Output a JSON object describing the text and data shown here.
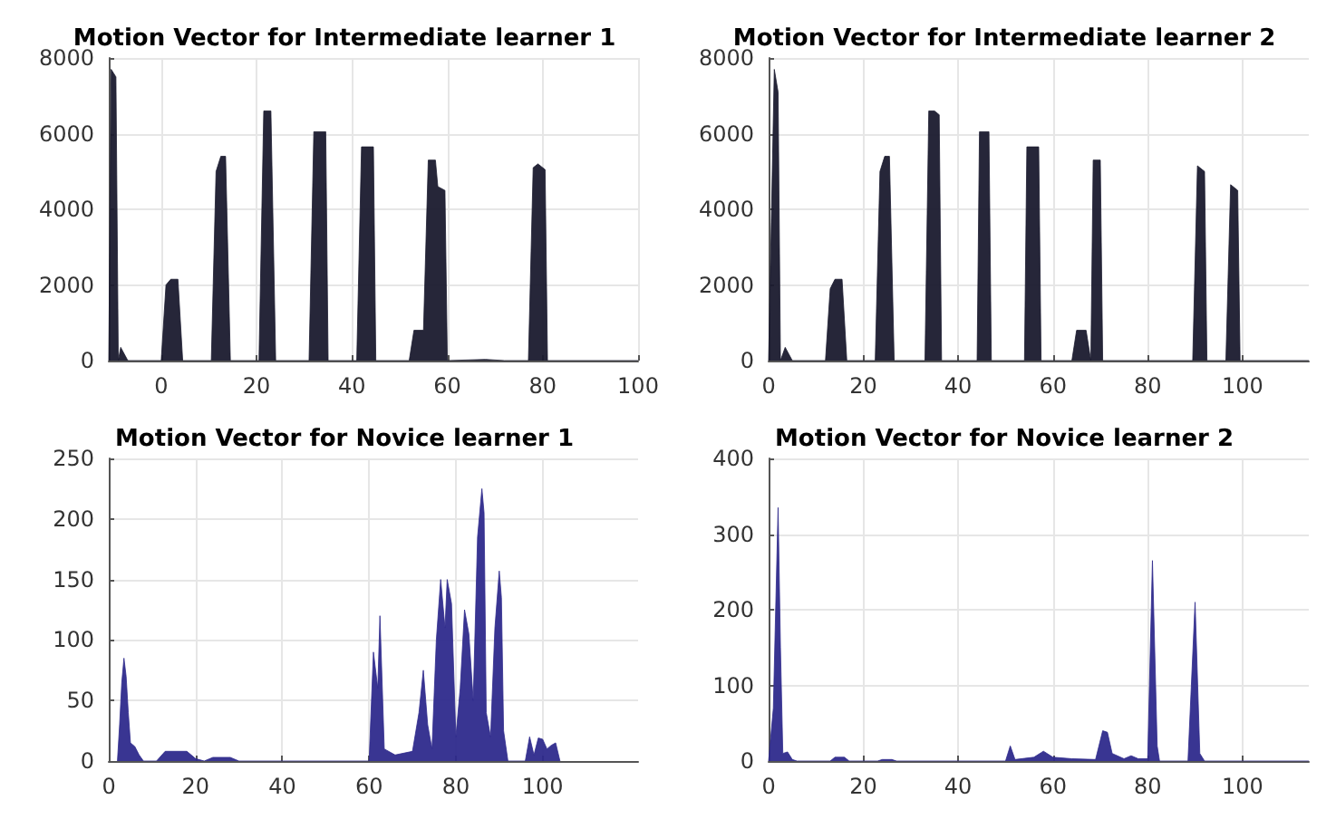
{
  "chart_data": [
    {
      "type": "area",
      "title": "Motion Vector for Intermediate learner 1",
      "color": "#1a1a2e",
      "grid": true,
      "xlim": [
        -11,
        100
      ],
      "xticks": [
        0,
        20,
        40,
        60,
        80,
        100
      ],
      "ylim": [
        0,
        8000
      ],
      "yticks": [
        0,
        2000,
        4000,
        6000,
        8000
      ],
      "x": [
        -11,
        -10.5,
        -9.5,
        -9,
        -8.5,
        -7,
        0,
        1,
        2,
        3.5,
        4.5,
        10.5,
        11.5,
        12.5,
        13.5,
        14.5,
        20.5,
        21.5,
        23,
        24,
        31,
        32,
        34.5,
        35,
        41,
        42,
        44.5,
        45,
        52,
        53,
        55,
        56,
        57.5,
        58,
        59.5,
        60,
        68,
        72,
        77,
        78,
        79,
        80.5,
        81,
        100
      ],
      "values": [
        0,
        7700,
        7500,
        0,
        350,
        0,
        0,
        2000,
        2150,
        2150,
        0,
        0,
        5000,
        5400,
        5400,
        0,
        0,
        6600,
        6600,
        0,
        0,
        6050,
        6050,
        0,
        0,
        5650,
        5650,
        0,
        0,
        800,
        800,
        5300,
        5300,
        4600,
        4500,
        0,
        30,
        0,
        0,
        5100,
        5200,
        5050,
        0,
        0
      ]
    },
    {
      "type": "area",
      "title": "Motion Vector for Intermediate learner 2",
      "color": "#1a1a2e",
      "grid": true,
      "xlim": [
        0,
        114
      ],
      "xticks": [
        0,
        20,
        40,
        60,
        80,
        100
      ],
      "ylim": [
        0,
        8000
      ],
      "yticks": [
        0,
        2000,
        4000,
        6000,
        8000
      ],
      "x": [
        0,
        1.2,
        2,
        2.5,
        3.5,
        5,
        12,
        13,
        14,
        15.5,
        16.5,
        22.5,
        23.5,
        24.5,
        25.5,
        26.5,
        33,
        33.8,
        35,
        36,
        36.5,
        44,
        44.5,
        46.5,
        47,
        54,
        54.5,
        57,
        57.5,
        64,
        65,
        67,
        68,
        68.5,
        70,
        70.5,
        89.5,
        90.5,
        92,
        92.5,
        96.5,
        97.5,
        99,
        99.5,
        114
      ],
      "values": [
        0,
        7700,
        7100,
        0,
        350,
        0,
        0,
        1900,
        2150,
        2150,
        0,
        0,
        5000,
        5400,
        5400,
        0,
        0,
        6600,
        6600,
        6500,
        0,
        0,
        6050,
        6050,
        0,
        0,
        5650,
        5650,
        0,
        0,
        800,
        800,
        0,
        5300,
        5300,
        0,
        0,
        5150,
        5000,
        0,
        0,
        4650,
        4500,
        0,
        0
      ]
    },
    {
      "type": "area",
      "title": "Motion Vector for Novice learner 1",
      "color": "#2e2a8c",
      "grid": true,
      "xlim": [
        0,
        122
      ],
      "xticks": [
        0,
        20,
        40,
        60,
        80,
        100
      ],
      "ylim": [
        0,
        250
      ],
      "yticks": [
        0,
        50,
        100,
        150,
        200,
        250
      ],
      "x": [
        2,
        2.5,
        3,
        3.5,
        4,
        4.5,
        5,
        6,
        7,
        8,
        11,
        13,
        18,
        20,
        22,
        24,
        28,
        30,
        60,
        61,
        62,
        62.5,
        63.5,
        66,
        70,
        71.5,
        72.5,
        73.5,
        74.5,
        75.5,
        76.5,
        77.5,
        78,
        79,
        80,
        81,
        82,
        83,
        84,
        85,
        86,
        86.5,
        87,
        88,
        89,
        90,
        90.5,
        91,
        92,
        96,
        97,
        98,
        99,
        100,
        101,
        102,
        103,
        104
      ],
      "values": [
        0,
        30,
        65,
        85,
        70,
        40,
        15,
        12,
        5,
        0,
        0,
        8,
        8,
        2,
        0,
        3,
        3,
        0,
        0,
        90,
        60,
        120,
        10,
        5,
        8,
        40,
        75,
        30,
        10,
        100,
        150,
        110,
        150,
        130,
        20,
        60,
        125,
        105,
        50,
        185,
        225,
        205,
        40,
        20,
        110,
        157,
        135,
        25,
        0,
        0,
        20,
        5,
        19,
        18,
        10,
        13,
        15,
        0
      ]
    },
    {
      "type": "area",
      "title": "Motion Vector for Novice learner 2",
      "color": "#2e2a8c",
      "grid": true,
      "xlim": [
        0,
        114
      ],
      "xticks": [
        0,
        20,
        40,
        60,
        80,
        100
      ],
      "ylim": [
        0,
        400
      ],
      "yticks": [
        0,
        100,
        200,
        300,
        400
      ],
      "x": [
        0,
        1,
        2,
        2.5,
        3,
        4,
        5,
        6,
        13,
        14,
        16,
        17,
        23,
        24,
        26,
        27,
        50,
        51,
        52,
        56,
        58,
        60,
        64,
        69,
        70.5,
        71.5,
        72.5,
        75,
        76.5,
        78,
        80,
        81,
        82,
        82.5,
        88.5,
        90,
        91,
        92,
        114
      ],
      "values": [
        0,
        70,
        335,
        150,
        10,
        12,
        2,
        0,
        0,
        5,
        5,
        0,
        0,
        2,
        2,
        0,
        0,
        20,
        2,
        5,
        13,
        5,
        3,
        2,
        40,
        38,
        10,
        3,
        7,
        3,
        3,
        265,
        20,
        0,
        0,
        210,
        10,
        0,
        0
      ]
    }
  ]
}
